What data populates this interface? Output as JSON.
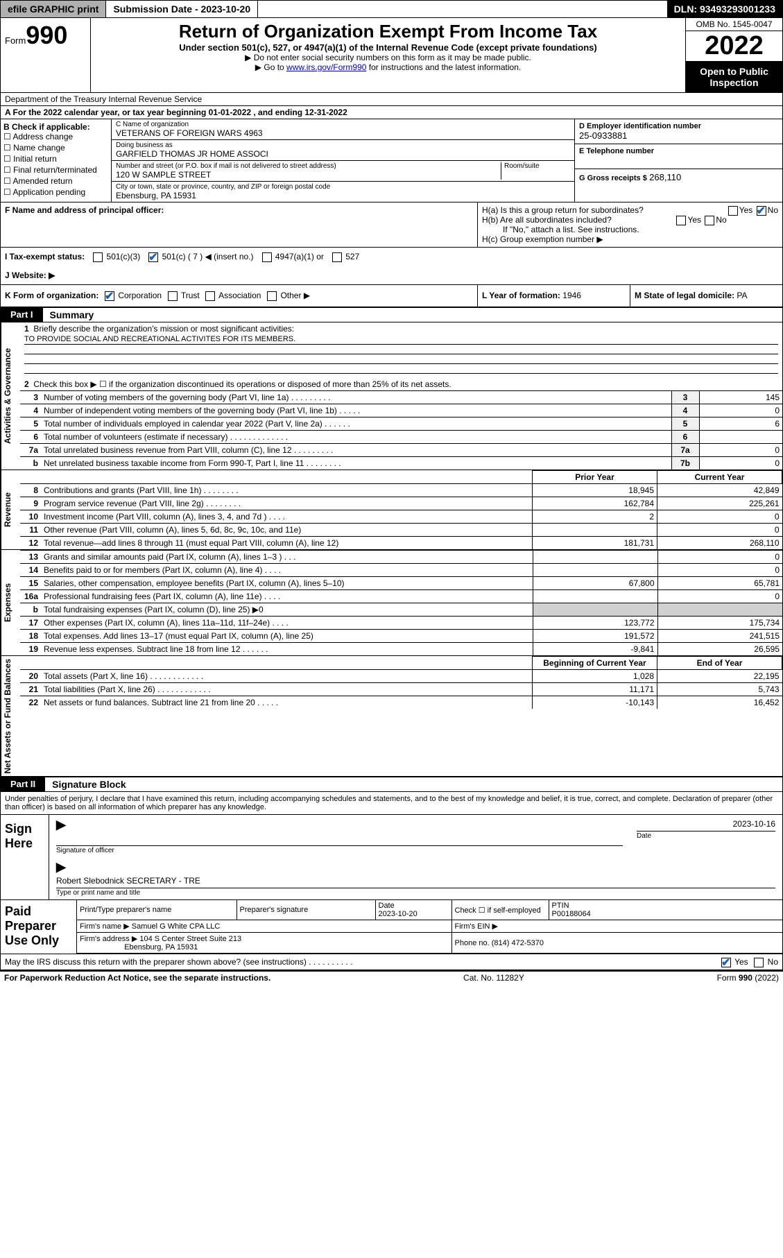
{
  "topbar": {
    "efile": "efile GRAPHIC print",
    "submission": "Submission Date - 2023-10-20",
    "dln": "DLN: 93493293001233"
  },
  "header": {
    "form_word": "Form",
    "form_num": "990",
    "title": "Return of Organization Exempt From Income Tax",
    "sub1": "Under section 501(c), 527, or 4947(a)(1) of the Internal Revenue Code (except private foundations)",
    "sub2": "▶ Do not enter social security numbers on this form as it may be made public.",
    "sub3_pre": "▶ Go to ",
    "sub3_link": "www.irs.gov/Form990",
    "sub3_post": " for instructions and the latest information.",
    "omb": "OMB No. 1545-0047",
    "year": "2022",
    "open_public": "Open to Public Inspection",
    "dept": "Department of the Treasury\nInternal Revenue Service"
  },
  "line_a": "A For the 2022 calendar year, or tax year beginning 01-01-2022   , and ending 12-31-2022",
  "id": {
    "b_label": "B Check if applicable:",
    "b_items": [
      "Address change",
      "Name change",
      "Initial return",
      "Final return/terminated",
      "Amended return",
      "Application pending"
    ],
    "c_label": "C Name of organization",
    "c_val": "VETERANS OF FOREIGN WARS 4963",
    "dba_label": "Doing business as",
    "dba_val": "GARFIELD THOMAS JR HOME ASSOCI",
    "street_label": "Number and street (or P.O. box if mail is not delivered to street address)",
    "street_val": "120 W SAMPLE STREET",
    "room_label": "Room/suite",
    "city_label": "City or town, state or province, country, and ZIP or foreign postal code",
    "city_val": "Ebensburg, PA  15931",
    "d_label": "D Employer identification number",
    "d_val": "25-0933881",
    "e_label": "E Telephone number",
    "g_label": "G Gross receipts $",
    "g_val": "268,110",
    "f_label": "F  Name and address of principal officer:",
    "ha_label": "H(a)  Is this a group return for subordinates?",
    "hb_label": "H(b)  Are all subordinates included?",
    "hb_note": "If \"No,\" attach a list. See instructions.",
    "hc_label": "H(c)  Group exemption number ▶",
    "yes": "Yes",
    "no": "No",
    "i_label": "I   Tax-exempt status:",
    "i_501c3": "501(c)(3)",
    "i_501c": "501(c) ( 7 ) ◀ (insert no.)",
    "i_4947": "4947(a)(1) or",
    "i_527": "527",
    "j_label": "J   Website: ▶",
    "k_label": "K Form of organization:",
    "k_corp": "Corporation",
    "k_trust": "Trust",
    "k_assoc": "Association",
    "k_other": "Other ▶",
    "l_label": "L Year of formation:",
    "l_val": "1946",
    "m_label": "M State of legal domicile:",
    "m_val": "PA"
  },
  "part1": {
    "tab": "Part I",
    "title": "Summary",
    "side_gov": "Activities & Governance",
    "side_rev": "Revenue",
    "side_exp": "Expenses",
    "side_net": "Net Assets or Fund Balances",
    "l1": "Briefly describe the organization's mission or most significant activities:",
    "l1_val": "TO PROVIDE SOCIAL AND RECREATIONAL ACTIVITES FOR ITS MEMBERS.",
    "l2": "Check this box ▶ ☐  if the organization discontinued its operations or disposed of more than 25% of its net assets.",
    "lines_gov": [
      {
        "n": "3",
        "d": "Number of voting members of the governing body (Part VI, line 1a)   .    .    .    .    .    .    .    .    .",
        "b": "3",
        "v": "145"
      },
      {
        "n": "4",
        "d": "Number of independent voting members of the governing body (Part VI, line 1b)  .    .    .    .    .",
        "b": "4",
        "v": "0"
      },
      {
        "n": "5",
        "d": "Total number of individuals employed in calendar year 2022 (Part V, line 2a)   .    .    .    .    .    .",
        "b": "5",
        "v": "6"
      },
      {
        "n": "6",
        "d": "Total number of volunteers (estimate if necessary)  .    .    .    .    .    .    .    .    .    .    .    .    .",
        "b": "6",
        "v": ""
      },
      {
        "n": "7a",
        "d": "Total unrelated business revenue from Part VIII, column (C), line 12  .    .    .    .    .    .    .    .    .",
        "b": "7a",
        "v": "0"
      },
      {
        "n": "b",
        "d": "Net unrelated business taxable income from Form 990-T, Part I, line 11  .    .    .    .    .    .    .    .",
        "b": "7b",
        "v": "0"
      }
    ],
    "hdr_prior": "Prior Year",
    "hdr_curr": "Current Year",
    "lines_rev": [
      {
        "n": "8",
        "d": "Contributions and grants (Part VIII, line 1h)   .    .    .    .    .    .    .    .",
        "p": "18,945",
        "c": "42,849"
      },
      {
        "n": "9",
        "d": "Program service revenue (Part VIII, line 2g)   .    .    .    .    .    .    .    .",
        "p": "162,784",
        "c": "225,261"
      },
      {
        "n": "10",
        "d": "Investment income (Part VIII, column (A), lines 3, 4, and 7d )   .    .    .    .",
        "p": "2",
        "c": "0"
      },
      {
        "n": "11",
        "d": "Other revenue (Part VIII, column (A), lines 5, 6d, 8c, 9c, 10c, and 11e)",
        "p": "",
        "c": "0"
      },
      {
        "n": "12",
        "d": "Total revenue—add lines 8 through 11 (must equal Part VIII, column (A), line 12)",
        "p": "181,731",
        "c": "268,110"
      }
    ],
    "lines_exp": [
      {
        "n": "13",
        "d": "Grants and similar amounts paid (Part IX, column (A), lines 1–3 )   .    .    .",
        "p": "",
        "c": "0"
      },
      {
        "n": "14",
        "d": "Benefits paid to or for members (Part IX, column (A), line 4)  .    .    .    .",
        "p": "",
        "c": "0"
      },
      {
        "n": "15",
        "d": "Salaries, other compensation, employee benefits (Part IX, column (A), lines 5–10)",
        "p": "67,800",
        "c": "65,781"
      },
      {
        "n": "16a",
        "d": "Professional fundraising fees (Part IX, column (A), line 11e)   .    .    .    .",
        "p": "",
        "c": "0"
      },
      {
        "n": "b",
        "d": "Total fundraising expenses (Part IX, column (D), line 25) ▶0",
        "p": "SHADE",
        "c": "SHADE"
      },
      {
        "n": "17",
        "d": "Other expenses (Part IX, column (A), lines 11a–11d, 11f–24e)  .    .    .    .",
        "p": "123,772",
        "c": "175,734"
      },
      {
        "n": "18",
        "d": "Total expenses. Add lines 13–17 (must equal Part IX, column (A), line 25)",
        "p": "191,572",
        "c": "241,515"
      },
      {
        "n": "19",
        "d": "Revenue less expenses. Subtract line 18 from line 12   .    .    .    .    .    .",
        "p": "-9,841",
        "c": "26,595"
      }
    ],
    "hdr_beg": "Beginning of Current Year",
    "hdr_end": "End of Year",
    "lines_net": [
      {
        "n": "20",
        "d": "Total assets (Part X, line 16)  .    .    .    .    .    .    .    .    .    .    .    .",
        "p": "1,028",
        "c": "22,195"
      },
      {
        "n": "21",
        "d": "Total liabilities (Part X, line 26)  .    .    .    .    .    .    .    .    .    .    .    .",
        "p": "11,171",
        "c": "5,743"
      },
      {
        "n": "22",
        "d": "Net assets or fund balances. Subtract line 21 from line 20   .    .    .    .    .",
        "p": "-10,143",
        "c": "16,452"
      }
    ]
  },
  "part2": {
    "tab": "Part II",
    "title": "Signature Block",
    "penalty": "Under penalties of perjury, I declare that I have examined this return, including accompanying schedules and statements, and to the best of my knowledge and belief, it is true, correct, and complete. Declaration of preparer (other than officer) is based on all information of which preparer has any knowledge.",
    "sign_here": "Sign Here",
    "sig_officer": "Signature of officer",
    "sig_date_lbl": "Date",
    "sig_date": "2023-10-16",
    "name_title": "Robert Slebodnick  SECRETARY - TRE",
    "name_title_lbl": "Type or print name and title",
    "paid": "Paid Preparer Use Only",
    "pt_name_lbl": "Print/Type preparer's name",
    "pt_sig_lbl": "Preparer's signature",
    "pt_date_lbl": "Date",
    "pt_date": "2023-10-20",
    "pt_check": "Check ☐ if self-employed",
    "ptin_lbl": "PTIN",
    "ptin": "P00188064",
    "firm_name_lbl": "Firm's name   ▶",
    "firm_name": "Samuel G White CPA LLC",
    "firm_ein_lbl": "Firm's EIN ▶",
    "firm_addr_lbl": "Firm's address ▶",
    "firm_addr1": "104 S Center Street Suite 213",
    "firm_addr2": "Ebensburg, PA  15931",
    "phone_lbl": "Phone no.",
    "phone": "(814) 472-5370",
    "may_irs": "May the IRS discuss this return with the preparer shown above? (see instructions)   .    .    .    .    .    .    .    .    .    .",
    "yes": "Yes",
    "no": "No"
  },
  "footer": {
    "left": "For Paperwork Reduction Act Notice, see the separate instructions.",
    "mid": "Cat. No. 11282Y",
    "right": "Form 990 (2022)"
  }
}
